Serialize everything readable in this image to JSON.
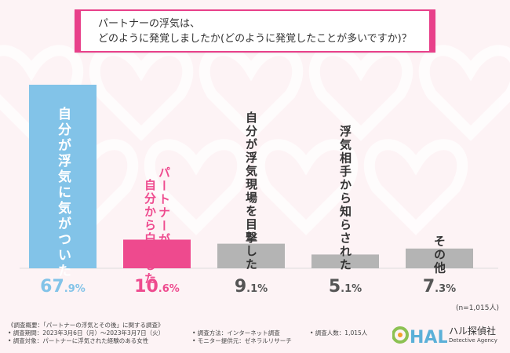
{
  "title": {
    "line1": "パートナーの浮気は、",
    "line2": "どのように発覚しましたか(どのように発覚したことが多いですか)？"
  },
  "chart_data": {
    "type": "bar",
    "categories": [
      "自分が浮気に気がついた",
      "パートナーが自分から白状した",
      "自分が浮気現場を目撃した",
      "浮気相手から知らされた",
      "その他"
    ],
    "category_columns": [
      [
        "自分が浮気に気がついた"
      ],
      [
        "パートナーが",
        "自分から白状した"
      ],
      [
        "自分が浮気現場を目撃した"
      ],
      [
        "浮気相手から知らされた"
      ],
      [
        "その他"
      ]
    ],
    "values": [
      67.9,
      10.6,
      9.1,
      5.1,
      7.3
    ],
    "value_labels": [
      {
        "int": "67",
        "dec": ".9%"
      },
      {
        "int": "10",
        "dec": ".6%"
      },
      {
        "int": "9",
        "dec": ".1%"
      },
      {
        "int": "5",
        "dec": ".1%"
      },
      {
        "int": "7",
        "dec": ".3%"
      }
    ],
    "colors": [
      "#82c3e8",
      "#ee4a8e",
      "#b4b4b4",
      "#b4b4b4",
      "#b4b4b4"
    ],
    "label_colors": [
      "#ffffff",
      "#ee4a8e",
      "#333333",
      "#333333",
      "#333333"
    ],
    "value_label_colors": [
      "#82c3e8",
      "#ee4a8e",
      "#555555",
      "#555555",
      "#555555"
    ],
    "ylim": [
      0,
      67.9
    ]
  },
  "sample_size": "(n=1,015人)",
  "footer": {
    "overview": "《調査概要：「パートナーの浮気とその後」に関する調査》",
    "period": "• 調査期間：2023年3月6日（月）〜2023年3月7日（火）",
    "target": "• 調査対象：パートナーに浮気された経験のある女性",
    "method": "• 調査方法：インターネット調査",
    "provider": "• モニター提供元：ゼネラルリサーチ",
    "count": "• 調査人数：1,015人"
  },
  "logo": {
    "mark": "HAL",
    "name_ja": "ハル探偵社",
    "name_en": "Detective Agency",
    "colors": {
      "h": "#f2a12a",
      "a": "#5bb0d8",
      "l": "#8cc152"
    }
  }
}
